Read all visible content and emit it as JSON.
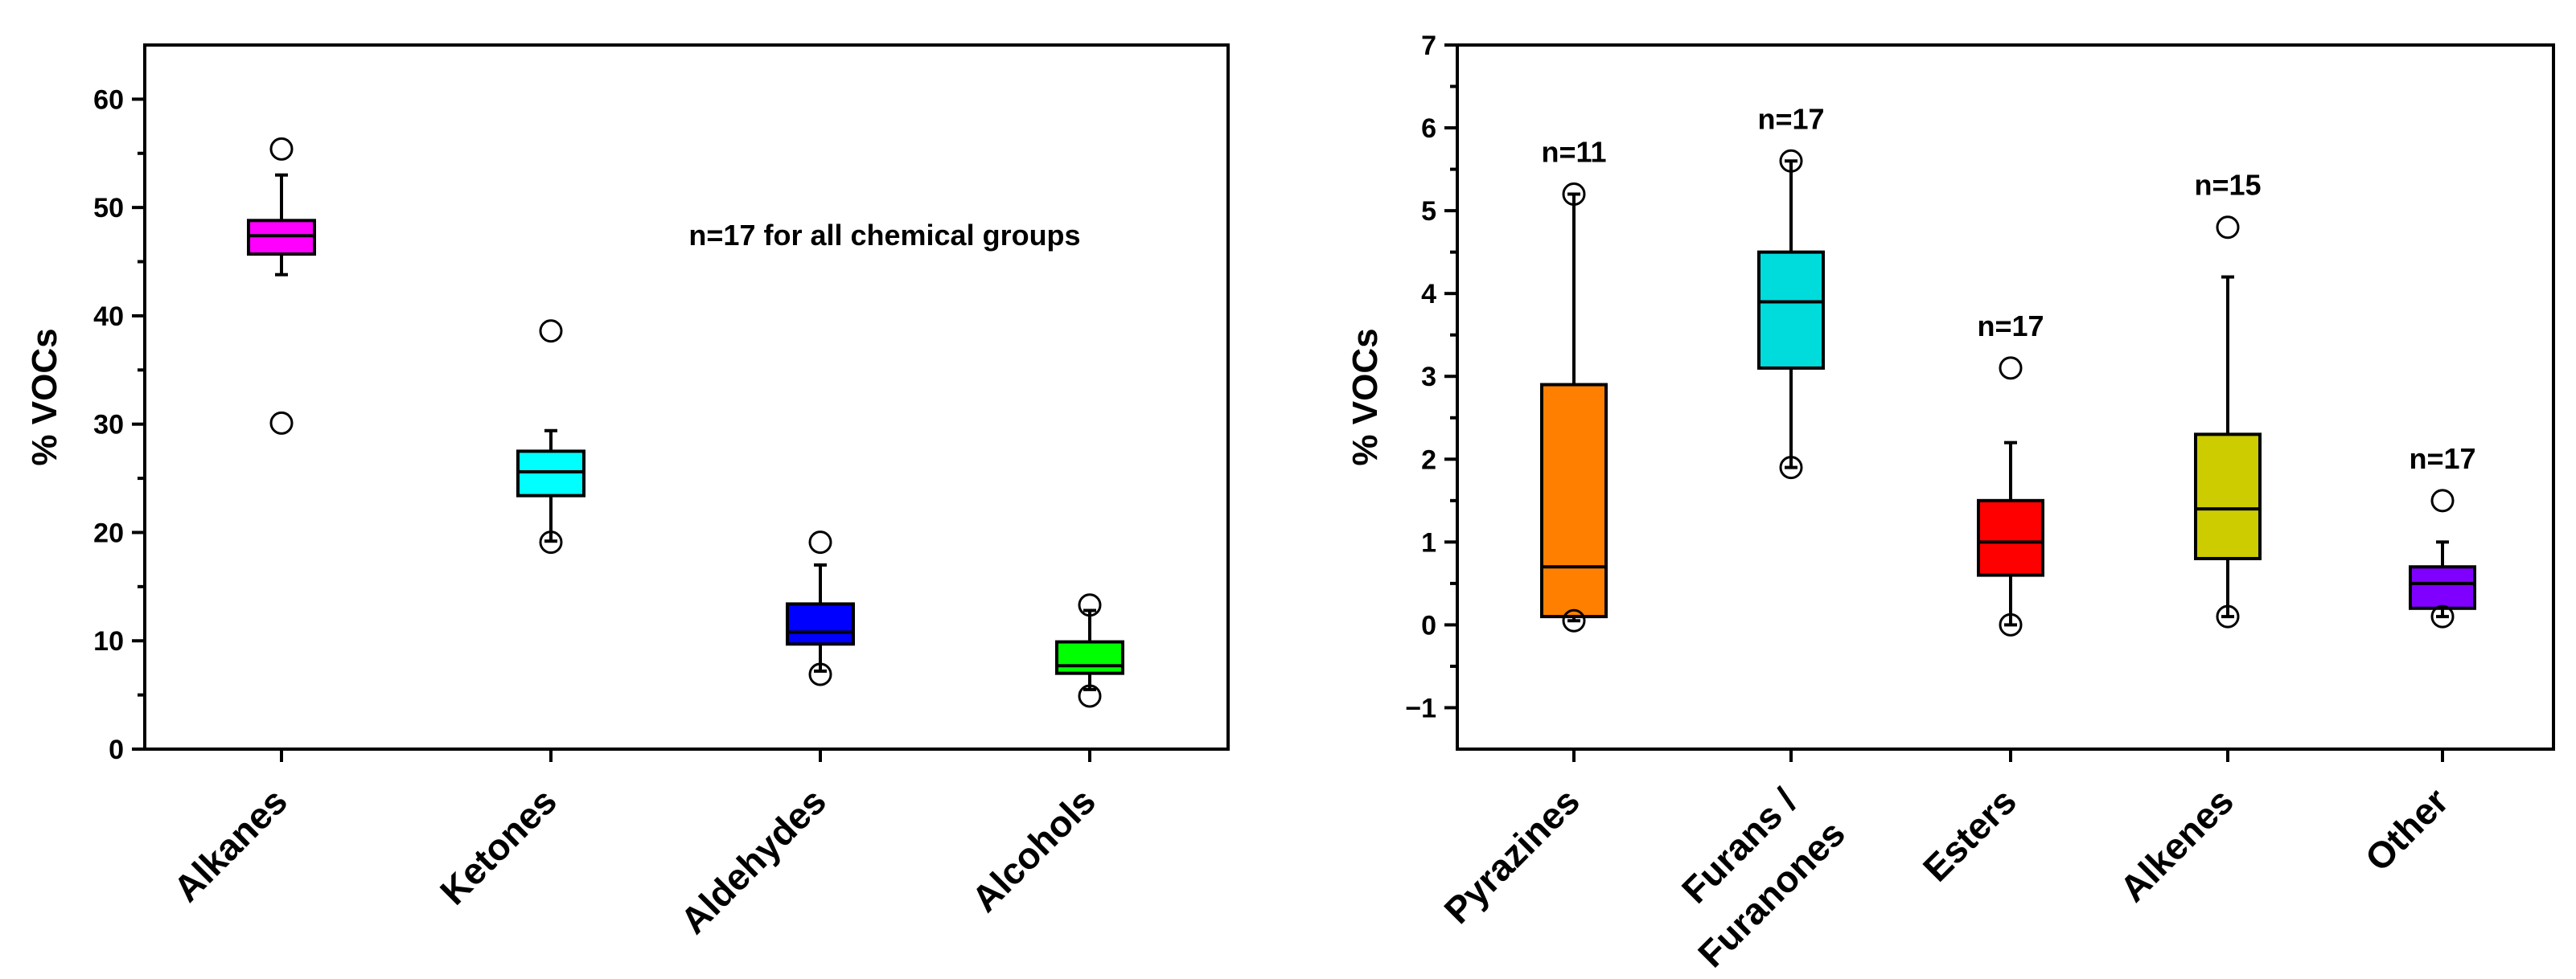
{
  "chart_data": [
    {
      "type": "boxplot",
      "ylabel": "% VOCs",
      "ylim": [
        0,
        65
      ],
      "yticks": [
        0,
        10,
        20,
        30,
        40,
        50,
        60
      ],
      "annotation": "n=17 for all chemical groups",
      "categories": [
        {
          "label": "Alkanes",
          "color": "#ff00ff",
          "q1": 45.7,
          "median": 47.4,
          "q3": 48.8,
          "whisker_low": 43.8,
          "whisker_high": 53.0,
          "outliers": [
            55.4,
            30.1
          ]
        },
        {
          "label": "Ketones",
          "color": "#00ffff",
          "q1": 23.4,
          "median": 25.6,
          "q3": 27.5,
          "whisker_low": 19.2,
          "whisker_high": 29.4,
          "outliers": [
            38.6,
            19.1
          ]
        },
        {
          "label": "Aldehydes",
          "color": "#0000ff",
          "q1": 9.7,
          "median": 10.8,
          "q3": 13.4,
          "whisker_low": 7.2,
          "whisker_high": 17.0,
          "outliers": [
            19.1,
            6.9
          ]
        },
        {
          "label": "Alcohols",
          "color": "#00ff00",
          "q1": 7.0,
          "median": 7.7,
          "q3": 9.9,
          "whisker_low": 5.5,
          "whisker_high": 12.8,
          "outliers": [
            13.3,
            4.9
          ]
        }
      ]
    },
    {
      "type": "boxplot",
      "ylabel": "% VOCs",
      "ylim": [
        -1.5,
        7
      ],
      "yticks": [
        -1,
        0,
        1,
        2,
        3,
        4,
        5,
        6,
        7
      ],
      "categories": [
        {
          "label": "Pyrazines",
          "color": "#ff8000",
          "n": "n=11",
          "q1": 0.1,
          "median": 0.7,
          "q3": 2.9,
          "whisker_low": 0.05,
          "whisker_high": 5.2,
          "outliers": [
            5.2,
            0.05
          ]
        },
        {
          "label": "Furans /",
          "label2": "Furanones",
          "color": "#00dcdc",
          "n": "n=17",
          "q1": 3.1,
          "median": 3.9,
          "q3": 4.5,
          "whisker_low": 1.9,
          "whisker_high": 5.6,
          "outliers": [
            5.6,
            1.9
          ]
        },
        {
          "label": "Esters",
          "color": "#ff0000",
          "n": "n=17",
          "q1": 0.6,
          "median": 1.0,
          "q3": 1.5,
          "whisker_low": 0.0,
          "whisker_high": 2.2,
          "outliers": [
            3.1,
            0.0
          ]
        },
        {
          "label": "Alkenes",
          "color": "#cccc00",
          "n": "n=15",
          "q1": 0.8,
          "median": 1.4,
          "q3": 2.3,
          "whisker_low": 0.1,
          "whisker_high": 4.2,
          "outliers": [
            4.8,
            0.1
          ]
        },
        {
          "label": "Other",
          "color": "#8000ff",
          "n": "n=17",
          "q1": 0.2,
          "median": 0.5,
          "q3": 0.7,
          "whisker_low": 0.1,
          "whisker_high": 1.0,
          "outliers": [
            1.5,
            0.1
          ]
        }
      ]
    }
  ]
}
